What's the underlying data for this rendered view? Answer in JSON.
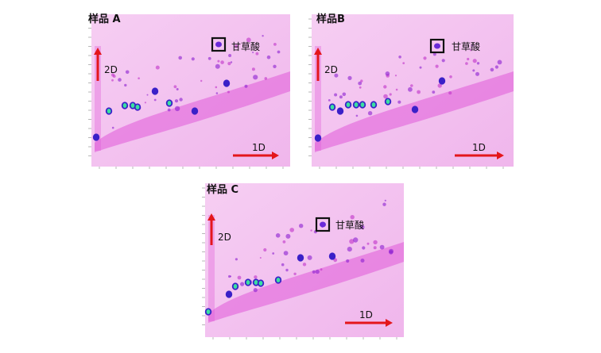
{
  "chart_data": [
    {
      "type": "heatmap",
      "title": "样品 A",
      "axis_1d_label": "1D",
      "axis_2d_label": "2D",
      "highlight_label": "甘草酸",
      "legend": "none",
      "grid": false
    },
    {
      "type": "heatmap",
      "title": "样品B",
      "axis_1d_label": "1D",
      "axis_2d_label": "2D",
      "highlight_label": "甘草酸",
      "legend": "none",
      "grid": false
    },
    {
      "type": "heatmap",
      "title": "样品 C",
      "axis_1d_label": "1D",
      "axis_2d_label": "2D",
      "highlight_label": "甘草酸",
      "legend": "none",
      "grid": false
    }
  ],
  "colors": {
    "background": "#f4c3f0",
    "band": "#e05ad8",
    "peak_low": "#3a20c8",
    "peak_high": "#3ae0a0",
    "arrow": "#e4161b",
    "box": "#111111"
  }
}
